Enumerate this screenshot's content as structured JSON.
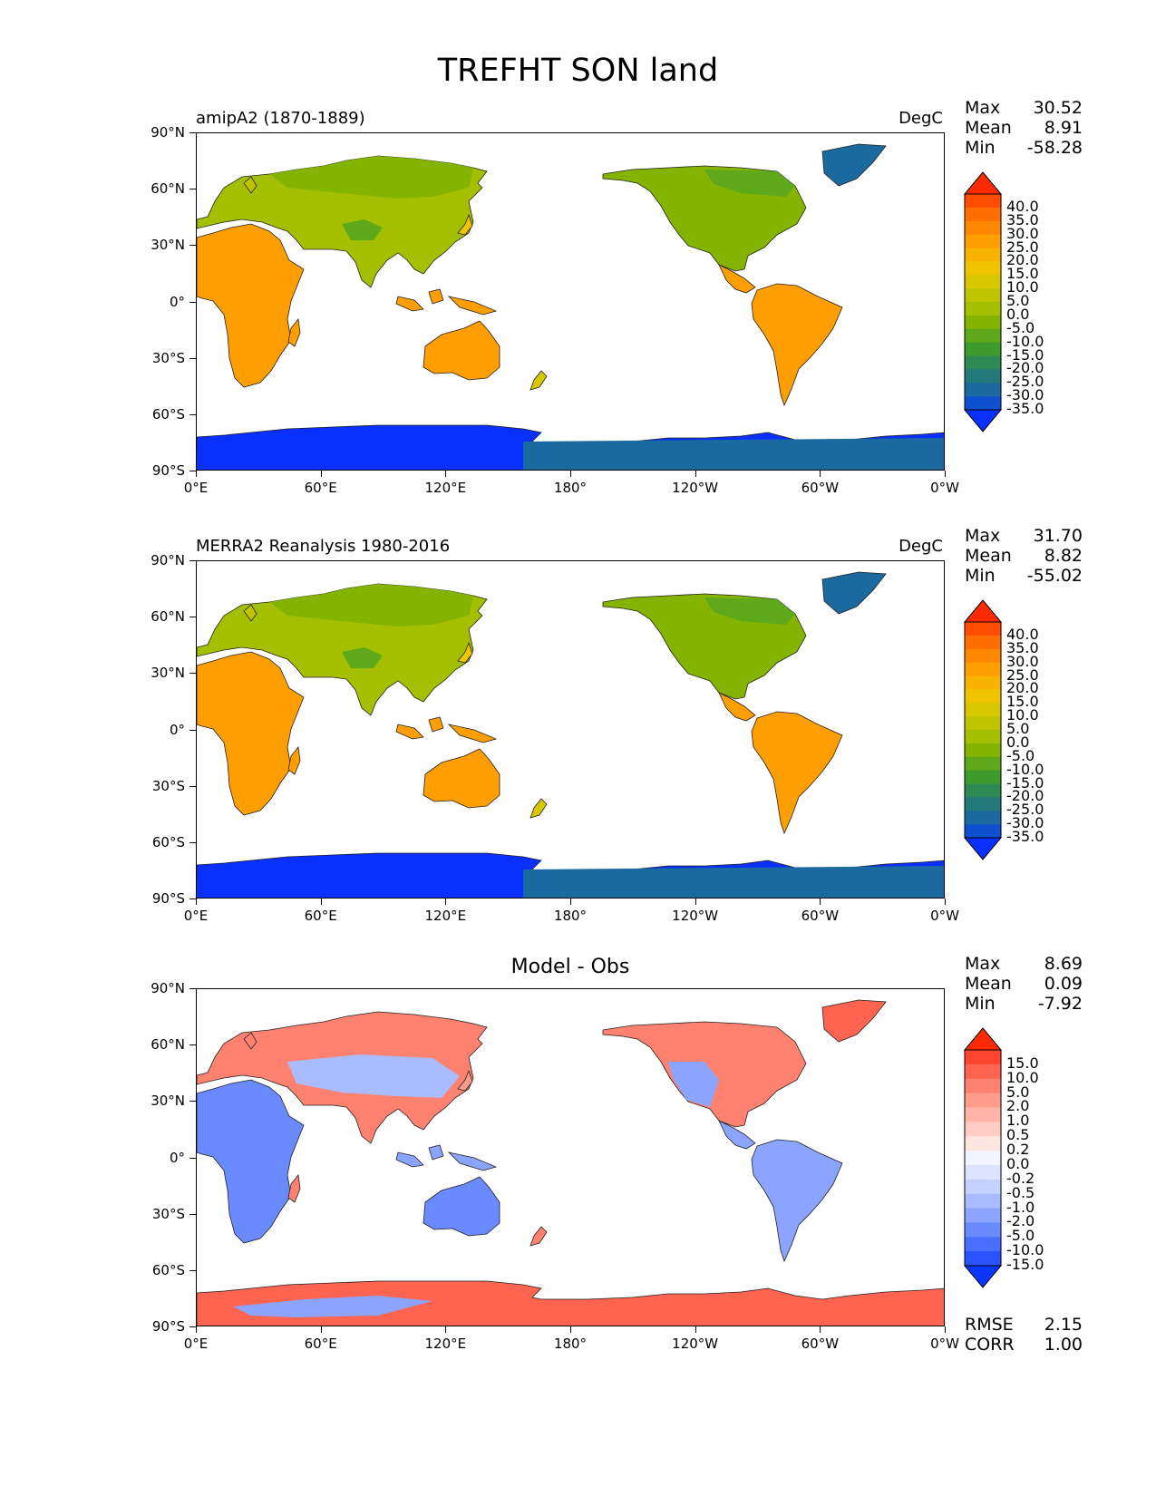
{
  "figure": {
    "title": "TREFHT SON land"
  },
  "axes": {
    "lat_ticks": [
      "90°N",
      "60°N",
      "30°N",
      "0°",
      "30°S",
      "60°S",
      "90°S"
    ],
    "lon_ticks": [
      "0°E",
      "60°E",
      "120°E",
      "180°",
      "120°W",
      "60°W",
      "0°W"
    ]
  },
  "panels": [
    {
      "left_title": "amipA2 (1870-1889)",
      "units": "DegC",
      "stats": [
        {
          "label": "Max",
          "value": "30.52"
        },
        {
          "label": "Mean",
          "value": "8.91"
        },
        {
          "label": "Min",
          "value": "-58.28"
        }
      ],
      "colorbar": {
        "levels": [
          "40.0",
          "35.0",
          "30.0",
          "25.0",
          "20.0",
          "15.0",
          "10.0",
          "5.0",
          "0.0",
          "-5.0",
          "-10.0",
          "-15.0",
          "-20.0",
          "-25.0",
          "-30.0",
          "-35.0"
        ],
        "colors": [
          "#ff2a00",
          "#ff4d00",
          "#ff6e00",
          "#ff8800",
          "#ff9e00",
          "#f8b200",
          "#f0c400",
          "#d8c800",
          "#c0c400",
          "#a4be00",
          "#84b400",
          "#5ea81c",
          "#3e9a2a",
          "#2d8a55",
          "#247a7a",
          "#1a6aa0",
          "#0f50d0",
          "#0a30ff"
        ]
      }
    },
    {
      "left_title": "MERRA2 Reanalysis 1980-2016",
      "units": "DegC",
      "stats": [
        {
          "label": "Max",
          "value": "31.70"
        },
        {
          "label": "Mean",
          "value": "8.82"
        },
        {
          "label": "Min",
          "value": "-55.02"
        }
      ],
      "colorbar": {
        "levels": [
          "40.0",
          "35.0",
          "30.0",
          "25.0",
          "20.0",
          "15.0",
          "10.0",
          "5.0",
          "0.0",
          "-5.0",
          "-10.0",
          "-15.0",
          "-20.0",
          "-25.0",
          "-30.0",
          "-35.0"
        ],
        "colors": [
          "#ff2a00",
          "#ff4d00",
          "#ff6e00",
          "#ff8800",
          "#ff9e00",
          "#f8b200",
          "#f0c400",
          "#d8c800",
          "#c0c400",
          "#a4be00",
          "#84b400",
          "#5ea81c",
          "#3e9a2a",
          "#2d8a55",
          "#247a7a",
          "#1a6aa0",
          "#0f50d0",
          "#0a30ff"
        ]
      }
    },
    {
      "center_title": "Model - Obs",
      "stats": [
        {
          "label": "Max",
          "value": "8.69"
        },
        {
          "label": "Mean",
          "value": "0.09"
        },
        {
          "label": "Min",
          "value": "-7.92"
        }
      ],
      "colorbar": {
        "levels": [
          "15.0",
          "10.0",
          "5.0",
          "2.0",
          "1.0",
          "0.5",
          "0.2",
          "0.0",
          "-0.2",
          "-0.5",
          "-1.0",
          "-2.0",
          "-5.0",
          "-10.0",
          "-15.0"
        ],
        "colors": [
          "#ff2a00",
          "#ff4530",
          "#ff6450",
          "#ff8270",
          "#ff9c8c",
          "#ffb4a8",
          "#ffcdc4",
          "#ffe6e1",
          "#f2f4ff",
          "#dde4ff",
          "#c4d2ff",
          "#a8bcff",
          "#8aa4ff",
          "#6a8aff",
          "#4a6eff",
          "#2a52ff",
          "#0a36ff"
        ]
      },
      "error_stats": [
        {
          "label": "RMSE",
          "value": "2.15"
        },
        {
          "label": "CORR",
          "value": "1.00"
        }
      ]
    }
  ]
}
